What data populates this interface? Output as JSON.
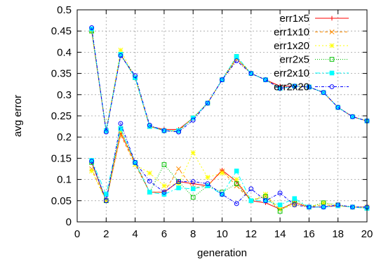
{
  "chart_data": {
    "type": "line",
    "title": "",
    "xlabel": "generation",
    "ylabel": "avg error",
    "xlim": [
      0,
      20
    ],
    "ylim": [
      0,
      0.5
    ],
    "xticks": [
      "0",
      "2",
      "4",
      "6",
      "8",
      "10",
      "12",
      "14",
      "16",
      "18",
      "20"
    ],
    "yticks": [
      "0",
      "0.05",
      "0.1",
      "0.15",
      "0.2",
      "0.25",
      "0.3",
      "0.35",
      "0.4",
      "0.45",
      "0.5"
    ],
    "grid": true,
    "legend_position": "top-right",
    "x": [
      1,
      2,
      3,
      4,
      5,
      6,
      7,
      8,
      9,
      10,
      11,
      12,
      13,
      14,
      15,
      16,
      17,
      18,
      19,
      20
    ],
    "series": [
      {
        "name": "err1x5",
        "color": "#ff0000",
        "marker": "plus",
        "dash": "",
        "groups": [
          [
            0.45,
            0.215,
            0.395,
            0.34,
            0.225,
            0.218,
            0.218,
            0.245,
            0.28,
            0.335,
            0.385,
            0.35,
            0.335,
            0.32,
            0.32,
            0.318,
            0.305,
            0.27,
            0.248,
            0.238
          ],
          [
            0.14,
            0.05,
            0.21,
            0.14,
            0.07,
            0.07,
            0.095,
            0.09,
            0.085,
            0.122,
            0.095,
            0.05,
            0.045,
            0.03,
            0.045,
            0.035,
            0.035,
            0.038,
            0.035,
            0.035
          ]
        ]
      },
      {
        "name": "err1x10",
        "color": "#ff8c00",
        "marker": "x",
        "dash": "4,3",
        "groups": [
          [
            0.45,
            0.215,
            0.395,
            0.34,
            0.225,
            0.215,
            0.215,
            0.245,
            0.28,
            0.335,
            0.385,
            0.35,
            0.335,
            0.315,
            0.32,
            0.318,
            0.305,
            0.27,
            0.248,
            0.238
          ],
          [
            0.125,
            0.05,
            0.205,
            0.135,
            0.07,
            0.07,
            0.125,
            0.08,
            0.085,
            0.12,
            0.085,
            0.05,
            0.06,
            0.03,
            0.045,
            0.035,
            0.04,
            0.038,
            0.035,
            0.035
          ]
        ]
      },
      {
        "name": "err1x20",
        "color": "#ffff00",
        "marker": "star",
        "dash": "2,3",
        "groups": [
          [
            0.45,
            0.215,
            0.405,
            0.34,
            0.225,
            0.215,
            0.215,
            0.245,
            0.28,
            0.335,
            0.385,
            0.35,
            0.335,
            0.315,
            0.32,
            0.318,
            0.305,
            0.27,
            0.248,
            0.238
          ],
          [
            0.12,
            0.05,
            0.215,
            0.135,
            0.115,
            0.085,
            0.09,
            0.163,
            0.105,
            0.115,
            0.1,
            0.05,
            0.065,
            0.03,
            0.04,
            0.035,
            0.045,
            0.038,
            0.035,
            0.035
          ]
        ]
      },
      {
        "name": "err2x5",
        "color": "#00c000",
        "marker": "square-open",
        "dash": "1,2",
        "groups": [
          [
            0.45,
            0.215,
            0.395,
            0.34,
            0.225,
            0.215,
            0.215,
            0.245,
            0.28,
            0.335,
            0.39,
            0.35,
            0.335,
            0.315,
            0.32,
            0.318,
            0.305,
            0.27,
            0.248,
            0.238
          ],
          [
            0.14,
            0.05,
            0.22,
            0.14,
            0.07,
            0.135,
            0.095,
            0.058,
            0.085,
            0.07,
            0.09,
            0.05,
            0.06,
            0.025,
            0.05,
            0.035,
            0.045,
            0.04,
            0.035,
            0.032
          ]
        ]
      },
      {
        "name": "err2x10",
        "color": "#00ffff",
        "marker": "square-filled",
        "dash": "7,3,2,3",
        "groups": [
          [
            0.455,
            0.215,
            0.395,
            0.34,
            0.225,
            0.215,
            0.215,
            0.245,
            0.28,
            0.335,
            0.39,
            0.35,
            0.335,
            0.315,
            0.32,
            0.318,
            0.305,
            0.27,
            0.248,
            0.238
          ],
          [
            0.145,
            0.065,
            0.22,
            0.14,
            0.07,
            0.065,
            0.08,
            0.078,
            0.085,
            0.065,
            0.12,
            0.05,
            0.05,
            0.04,
            0.055,
            0.035,
            0.035,
            0.038,
            0.035,
            0.032
          ]
        ]
      },
      {
        "name": "err2x20",
        "color": "#0000ff",
        "marker": "circle-open",
        "dash": "4,2,1,2",
        "groups": [
          [
            0.458,
            0.212,
            0.392,
            0.345,
            0.228,
            0.215,
            0.212,
            0.24,
            0.28,
            0.335,
            0.38,
            0.35,
            0.335,
            0.315,
            0.32,
            0.318,
            0.305,
            0.27,
            0.248,
            0.238
          ],
          [
            0.143,
            0.05,
            0.232,
            0.14,
            0.096,
            0.07,
            0.095,
            0.095,
            0.09,
            0.065,
            0.043,
            0.078,
            0.05,
            0.068,
            0.04,
            0.035,
            0.035,
            0.04,
            0.035,
            0.035
          ]
        ]
      }
    ]
  }
}
